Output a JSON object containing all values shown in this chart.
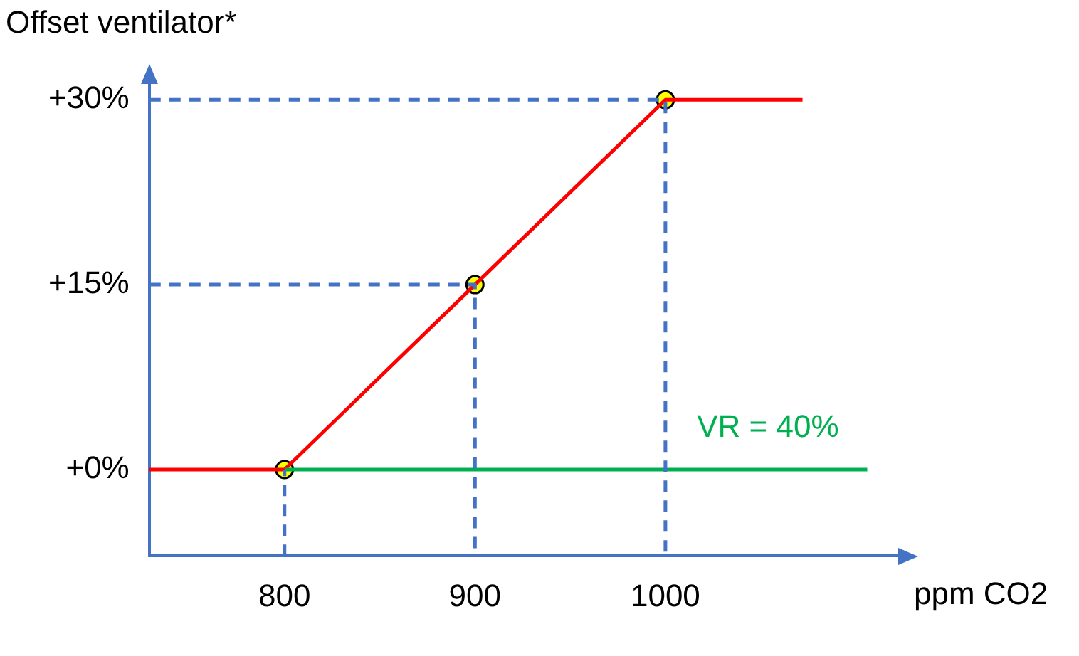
{
  "chart_data": {
    "type": "line",
    "ylabel": "Offset ventilator*",
    "xlabel": "ppm CO2",
    "xlim": [
      729,
      1123
    ],
    "ylim": [
      -7,
      31.4
    ],
    "xticks": [
      800,
      900,
      1000
    ],
    "yticks": [
      {
        "value": 0,
        "label": "+0%"
      },
      {
        "value": 15,
        "label": "+15%"
      },
      {
        "value": 30,
        "label": "+30%"
      }
    ],
    "grid": false,
    "legend": false,
    "annotations": [
      "VR = 40%"
    ],
    "series": [
      {
        "type": "line",
        "color": "#4472c4",
        "line_style": "dashed",
        "marker": "none",
        "x": [
          800,
          800
        ],
        "values": [
          -7,
          0
        ]
      },
      {
        "type": "line",
        "color": "#4472c4",
        "line_style": "dashed",
        "marker": "none",
        "x": [
          729,
          900,
          900
        ],
        "values": [
          15,
          15,
          -7
        ]
      },
      {
        "type": "line",
        "color": "#4472c4",
        "line_style": "dashed",
        "marker": "none",
        "x": [
          729,
          1000,
          1000
        ],
        "values": [
          30,
          30,
          -7
        ]
      },
      {
        "type": "line",
        "color": "#00b050",
        "line_style": "solid",
        "marker": "none",
        "x": [
          800,
          1106
        ],
        "values": [
          0,
          0
        ]
      },
      {
        "type": "line",
        "color": "#ff0000",
        "line_style": "solid",
        "marker": "none",
        "x": [
          729,
          800,
          900,
          1000,
          1072
        ],
        "values": [
          0,
          0,
          15,
          30,
          30
        ]
      },
      {
        "type": "scatter",
        "color": "#ffff00",
        "marker": "circle",
        "x": [
          800,
          900,
          1000
        ],
        "values": [
          0,
          15,
          30
        ]
      }
    ]
  }
}
